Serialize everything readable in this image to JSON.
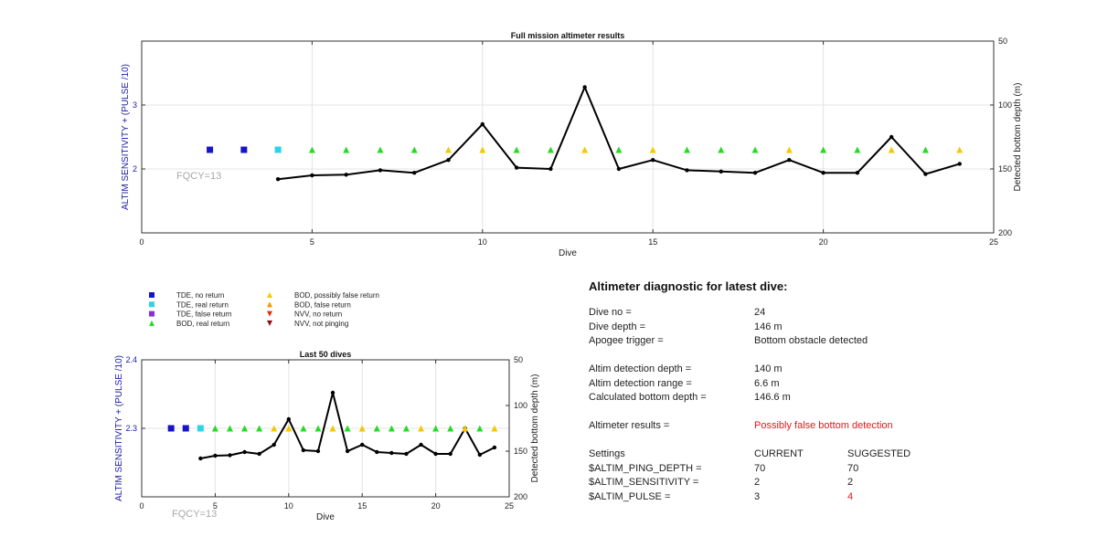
{
  "colors": {
    "tde_no_return": "#1414c8",
    "tde_real_return": "#2bd4e6",
    "tde_false_return": "#8a2be2",
    "bod_real_return": "#22dd22",
    "bod_possibly_false": "#f5c800",
    "bod_false_return": "#f59a00",
    "nvv_no_return": "#e03010",
    "nvv_not_pinging": "#8a1010",
    "depth_line": "#000000",
    "suggested_changed": "#e0191b"
  },
  "chart_data": [
    {
      "type": "scatter+line",
      "title": "Full mission altimeter results",
      "xlabel": "Dive",
      "ylabel_left": "ALTIM SENSITIVITY + (PULSE /10)",
      "ylabel_right": "Detected bottom depth (m)",
      "xlim": [
        0,
        25
      ],
      "ylim_left": [
        1,
        4
      ],
      "ylim_right": [
        50,
        200
      ],
      "right_axis_reversed": true,
      "x_ticks": [
        0,
        5,
        10,
        15,
        20,
        25
      ],
      "y_left_ticks": [
        2,
        3
      ],
      "y_right_ticks": [
        50,
        100,
        150,
        200
      ],
      "grid": true,
      "annotation": "FQCY=13",
      "markers": {
        "dives": [
          2,
          3,
          4,
          5,
          6,
          7,
          8,
          9,
          10,
          11,
          12,
          13,
          14,
          15,
          16,
          17,
          18,
          19,
          20,
          21,
          22,
          23,
          24
        ],
        "setting": [
          2.3,
          2.3,
          2.3,
          2.3,
          2.3,
          2.3,
          2.3,
          2.3,
          2.3,
          2.3,
          2.3,
          2.3,
          2.3,
          2.3,
          2.3,
          2.3,
          2.3,
          2.3,
          2.3,
          2.3,
          2.3,
          2.3,
          2.3
        ],
        "category": [
          "tde_no_return",
          "tde_no_return",
          "tde_real_return",
          "bod_real_return",
          "bod_real_return",
          "bod_real_return",
          "bod_real_return",
          "bod_possibly_false",
          "bod_possibly_false",
          "bod_real_return",
          "bod_real_return",
          "bod_possibly_false",
          "bod_real_return",
          "bod_possibly_false",
          "bod_real_return",
          "bod_real_return",
          "bod_real_return",
          "bod_possibly_false",
          "bod_real_return",
          "bod_real_return",
          "bod_possibly_false",
          "bod_real_return",
          "bod_possibly_false"
        ]
      },
      "depth_series": {
        "dives": [
          4,
          5,
          6,
          7,
          8,
          9,
          10,
          11,
          12,
          13,
          14,
          15,
          16,
          17,
          18,
          19,
          20,
          21,
          22,
          23,
          24
        ],
        "depth_m": [
          158,
          155,
          154.5,
          151,
          153,
          143,
          115,
          149,
          150,
          86,
          150,
          143,
          151,
          152,
          153,
          143,
          153,
          153,
          125,
          154,
          146
        ]
      }
    },
    {
      "type": "scatter+line",
      "title": "Last 50 dives",
      "xlabel": "Dive",
      "ylabel_left": "ALTIM SENSITIVITY + (PULSE /10)",
      "ylabel_right": "Detected bottom depth (m)",
      "xlim": [
        0,
        25
      ],
      "ylim_left": [
        2.2,
        2.4
      ],
      "ylim_right": [
        50,
        200
      ],
      "right_axis_reversed": true,
      "x_ticks": [
        0,
        5,
        10,
        15,
        20,
        25
      ],
      "y_left_ticks": [
        2.3,
        2.4
      ],
      "y_right_ticks": [
        50,
        100,
        150,
        200
      ],
      "grid": true,
      "annotation": "FQCY=13",
      "markers": {
        "dives": [
          2,
          3,
          4,
          5,
          6,
          7,
          8,
          9,
          10,
          11,
          12,
          13,
          14,
          15,
          16,
          17,
          18,
          19,
          20,
          21,
          22,
          23,
          24
        ],
        "setting": [
          2.3,
          2.3,
          2.3,
          2.3,
          2.3,
          2.3,
          2.3,
          2.3,
          2.3,
          2.3,
          2.3,
          2.3,
          2.3,
          2.3,
          2.3,
          2.3,
          2.3,
          2.3,
          2.3,
          2.3,
          2.3,
          2.3,
          2.3
        ],
        "category": [
          "tde_no_return",
          "tde_no_return",
          "tde_real_return",
          "bod_real_return",
          "bod_real_return",
          "bod_real_return",
          "bod_real_return",
          "bod_possibly_false",
          "bod_possibly_false",
          "bod_real_return",
          "bod_real_return",
          "bod_possibly_false",
          "bod_real_return",
          "bod_possibly_false",
          "bod_real_return",
          "bod_real_return",
          "bod_real_return",
          "bod_possibly_false",
          "bod_real_return",
          "bod_real_return",
          "bod_possibly_false",
          "bod_real_return",
          "bod_possibly_false"
        ]
      },
      "depth_series": {
        "dives": [
          4,
          5,
          6,
          7,
          8,
          9,
          10,
          11,
          12,
          13,
          14,
          15,
          16,
          17,
          18,
          19,
          20,
          21,
          22,
          23,
          24
        ],
        "depth_m": [
          158,
          155,
          154.5,
          151,
          153,
          143,
          115,
          149,
          150,
          86,
          150,
          143,
          151,
          152,
          153,
          143,
          153,
          153,
          125,
          154,
          146
        ]
      }
    }
  ],
  "legend": {
    "items": [
      {
        "key": "tde_no_return",
        "label": "TDE, no return",
        "shape": "square"
      },
      {
        "key": "tde_real_return",
        "label": "TDE, real return",
        "shape": "square"
      },
      {
        "key": "tde_false_return",
        "label": "TDE, false return",
        "shape": "square"
      },
      {
        "key": "bod_real_return",
        "label": "BOD, real return",
        "shape": "triangle-up"
      },
      {
        "key": "bod_possibly_false",
        "label": "BOD, possibly false return",
        "shape": "triangle-up"
      },
      {
        "key": "bod_false_return",
        "label": "BOD, false return",
        "shape": "triangle-up"
      },
      {
        "key": "nvv_no_return",
        "label": "NVV, no return",
        "shape": "triangle-down"
      },
      {
        "key": "nvv_not_pinging",
        "label": "NVV, not pinging",
        "shape": "triangle-down"
      }
    ]
  },
  "diagnostic": {
    "heading": "Altimeter diagnostic for latest dive:",
    "dive_no_label": "Dive no =",
    "dive_no_value": "24",
    "dive_depth_label": "Dive depth =",
    "dive_depth_value": "146 m",
    "apogee_label": "Apogee trigger =",
    "apogee_value": "Bottom obstacle detected",
    "detection_depth_label": "Altim detection depth =",
    "detection_depth_value": "140 m",
    "detection_range_label": "Altim detection range =",
    "detection_range_value": "6.6 m",
    "bottom_depth_label": "Calculated bottom depth =",
    "bottom_depth_value": "146.6 m",
    "results_label": "Altimeter results =",
    "results_value": "Possibly false bottom detection",
    "settings_label": "Settings",
    "current_header": "CURRENT",
    "suggested_header": "SUGGESTED",
    "settings": [
      {
        "name": "$ALTIM_PING_DEPTH =",
        "current": "70",
        "suggested": "70",
        "changed": false
      },
      {
        "name": "$ALTIM_SENSITIVITY =",
        "current": "2",
        "suggested": "2",
        "changed": false
      },
      {
        "name": "$ALTIM_PULSE =",
        "current": "3",
        "suggested": "4",
        "changed": true
      }
    ]
  }
}
